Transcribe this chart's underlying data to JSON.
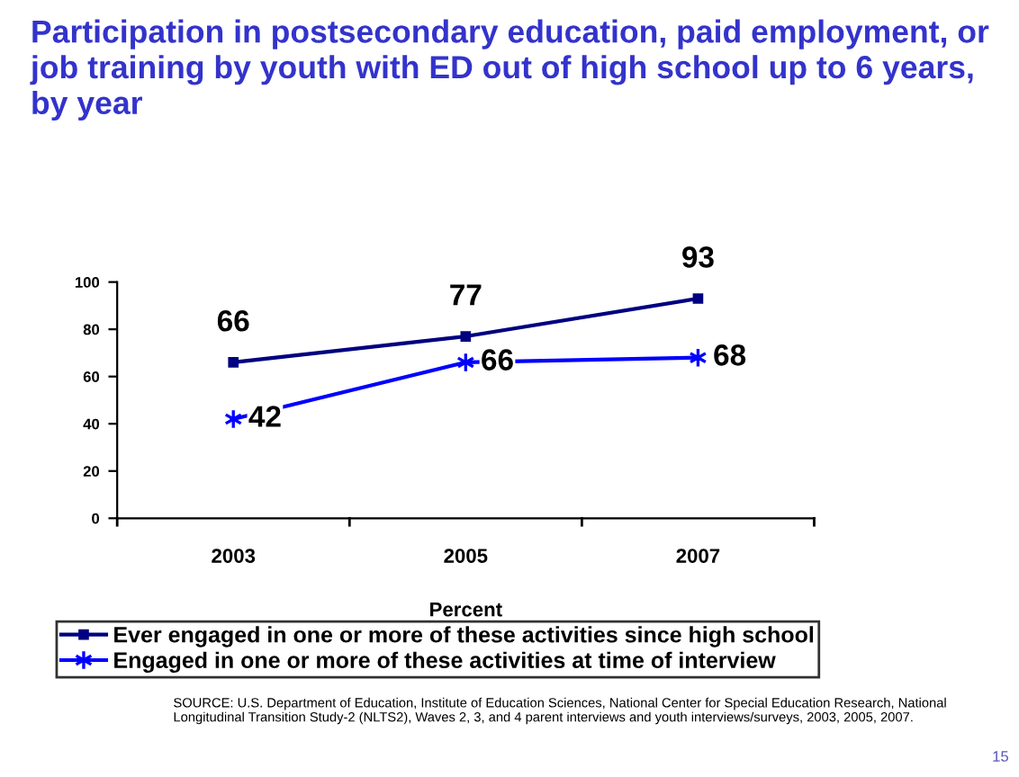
{
  "chart_data": {
    "type": "line",
    "title": "Participation in postsecondary education, paid employment, or job training by youth with ED out of high school up to 6 years, by year",
    "xlabel": "Percent",
    "categories": [
      "2003",
      "2005",
      "2007"
    ],
    "series": [
      {
        "name": "Ever engaged in one or more of these activities since high school",
        "color": "#000080",
        "values": [
          66,
          77,
          93
        ],
        "marker": "square"
      },
      {
        "name": "Engaged in one or more of these activities at time of interview",
        "color": "#0000ff",
        "values": [
          42,
          66,
          68
        ],
        "marker": "cross"
      }
    ],
    "ylim": [
      0,
      100
    ],
    "yticks": [
      0,
      20,
      40,
      60,
      80,
      100
    ],
    "data_labels": true,
    "grid": false,
    "legend": "bottom",
    "line_style": "solid",
    "annotations": [
      "SOURCE: U.S. Department of Education, Institute of Education Sciences, National Center for Special Education Research, National Longitudinal Transition Study-2 (NLTS2), Waves 2, 3, and 4 parent interviews and youth interviews/surveys, 2003, 2005, 2007.",
      "15"
    ]
  }
}
